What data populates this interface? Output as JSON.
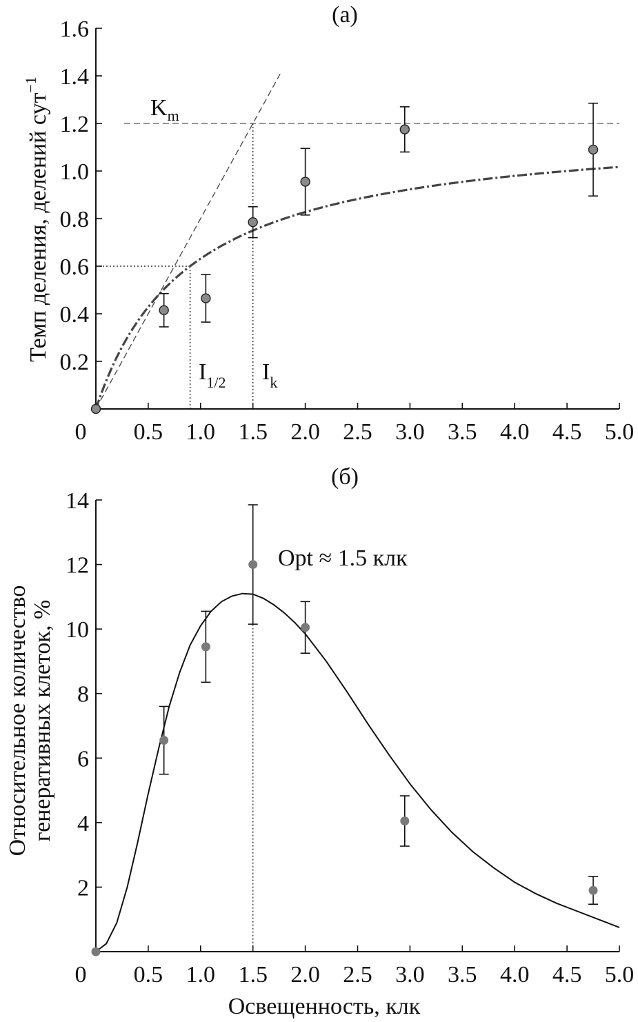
{
  "chart_data": [
    {
      "type": "scatter",
      "panel_label": "(а)",
      "ylabel": "Темп деления, делений сут",
      "ylabel_superscript": "−1",
      "xlabel": "",
      "xlim": [
        0,
        5.0
      ],
      "ylim": [
        0,
        1.6
      ],
      "x_ticks": [
        {
          "v": 0,
          "label": "0"
        },
        {
          "v": 0.5,
          "label": "0.5"
        },
        {
          "v": 1.0,
          "label": "1.0"
        },
        {
          "v": 1.5,
          "label": "1.5"
        },
        {
          "v": 2.0,
          "label": "2.0"
        },
        {
          "v": 2.5,
          "label": "2.5"
        },
        {
          "v": 3.0,
          "label": "3.0"
        },
        {
          "v": 3.5,
          "label": "3.5"
        },
        {
          "v": 4.0,
          "label": "4.0"
        },
        {
          "v": 4.5,
          "label": "4.5"
        },
        {
          "v": 5.0,
          "label": "5.0"
        }
      ],
      "y_ticks": [
        {
          "v": 0.2,
          "label": "0.2"
        },
        {
          "v": 0.4,
          "label": "0.4"
        },
        {
          "v": 0.6,
          "label": "0.6"
        },
        {
          "v": 0.8,
          "label": "0.8"
        },
        {
          "v": 1.0,
          "label": "1.0"
        },
        {
          "v": 1.2,
          "label": "1.2"
        },
        {
          "v": 1.4,
          "label": "1.4"
        },
        {
          "v": 1.6,
          "label": "1.6"
        }
      ],
      "points": [
        {
          "x": 0.0,
          "y": 0.0,
          "err": 0
        },
        {
          "x": 0.65,
          "y": 0.415,
          "err": 0.07
        },
        {
          "x": 1.05,
          "y": 0.465,
          "err": 0.1
        },
        {
          "x": 1.5,
          "y": 0.785,
          "err": 0.065
        },
        {
          "x": 2.0,
          "y": 0.955,
          "err": 0.14
        },
        {
          "x": 2.95,
          "y": 1.175,
          "err": 0.095
        },
        {
          "x": 4.75,
          "y": 1.09,
          "err": 0.195
        }
      ],
      "fit": {
        "model": "saturation",
        "Km": 1.2
      },
      "Km": 1.2,
      "I_half": 0.9,
      "I_k": 1.5,
      "annotations": {
        "km_main": "K",
        "km_sub": "m",
        "ihalf_main": "I",
        "ihalf_sub": "1/2",
        "ik_main": "I",
        "ik_sub": "k"
      }
    },
    {
      "type": "scatter",
      "panel_label": "(б)",
      "ylabel_line1": "Относительное количество",
      "ylabel_line2": "генеративных клеток, %",
      "xlabel": "Освещенность, клк",
      "xlim": [
        0,
        5.0
      ],
      "ylim": [
        0,
        14
      ],
      "x_ticks": [
        {
          "v": 0,
          "label": "0"
        },
        {
          "v": 0.5,
          "label": "0.5"
        },
        {
          "v": 1.0,
          "label": "1.0"
        },
        {
          "v": 1.5,
          "label": "1.5"
        },
        {
          "v": 2.0,
          "label": "2.0"
        },
        {
          "v": 2.5,
          "label": "2.5"
        },
        {
          "v": 3.0,
          "label": "3.0"
        },
        {
          "v": 3.5,
          "label": "3.5"
        },
        {
          "v": 4.0,
          "label": "4.0"
        },
        {
          "v": 4.5,
          "label": "4.5"
        },
        {
          "v": 5.0,
          "label": "5.0"
        }
      ],
      "y_ticks": [
        {
          "v": 2,
          "label": "2"
        },
        {
          "v": 4,
          "label": "4"
        },
        {
          "v": 6,
          "label": "6"
        },
        {
          "v": 8,
          "label": "8"
        },
        {
          "v": 10,
          "label": "10"
        },
        {
          "v": 12,
          "label": "12"
        },
        {
          "v": 14,
          "label": "14"
        }
      ],
      "points": [
        {
          "x": 0.0,
          "y": 0.0,
          "err": 0
        },
        {
          "x": 0.65,
          "y": 6.55,
          "err": 1.05
        },
        {
          "x": 1.05,
          "y": 9.45,
          "err": 1.1
        },
        {
          "x": 1.5,
          "y": 12.0,
          "err": 1.85
        },
        {
          "x": 2.0,
          "y": 10.05,
          "err": 0.8
        },
        {
          "x": 2.95,
          "y": 4.05,
          "err": 0.78
        },
        {
          "x": 4.75,
          "y": 1.9,
          "err": 0.43
        }
      ],
      "fit_curve": [
        [
          0.0,
          0.0
        ],
        [
          0.1,
          0.25
        ],
        [
          0.2,
          0.9
        ],
        [
          0.3,
          2.0
        ],
        [
          0.4,
          3.4
        ],
        [
          0.5,
          4.9
        ],
        [
          0.6,
          6.3
        ],
        [
          0.7,
          7.6
        ],
        [
          0.8,
          8.65
        ],
        [
          0.9,
          9.5
        ],
        [
          1.0,
          10.1
        ],
        [
          1.1,
          10.55
        ],
        [
          1.2,
          10.85
        ],
        [
          1.3,
          11.02
        ],
        [
          1.4,
          11.1
        ],
        [
          1.5,
          11.08
        ],
        [
          1.6,
          10.95
        ],
        [
          1.7,
          10.75
        ],
        [
          1.8,
          10.5
        ],
        [
          1.9,
          10.2
        ],
        [
          2.0,
          9.85
        ],
        [
          2.2,
          9.0
        ],
        [
          2.4,
          8.05
        ],
        [
          2.6,
          7.05
        ],
        [
          2.8,
          6.1
        ],
        [
          3.0,
          5.2
        ],
        [
          3.2,
          4.4
        ],
        [
          3.4,
          3.7
        ],
        [
          3.6,
          3.1
        ],
        [
          3.8,
          2.6
        ],
        [
          4.0,
          2.15
        ],
        [
          4.2,
          1.8
        ],
        [
          4.4,
          1.5
        ],
        [
          4.6,
          1.25
        ],
        [
          4.8,
          1.0
        ],
        [
          5.0,
          0.75
        ]
      ],
      "opt_x": 1.5,
      "opt_label": "Opt ≈ 1.5 клк"
    }
  ]
}
